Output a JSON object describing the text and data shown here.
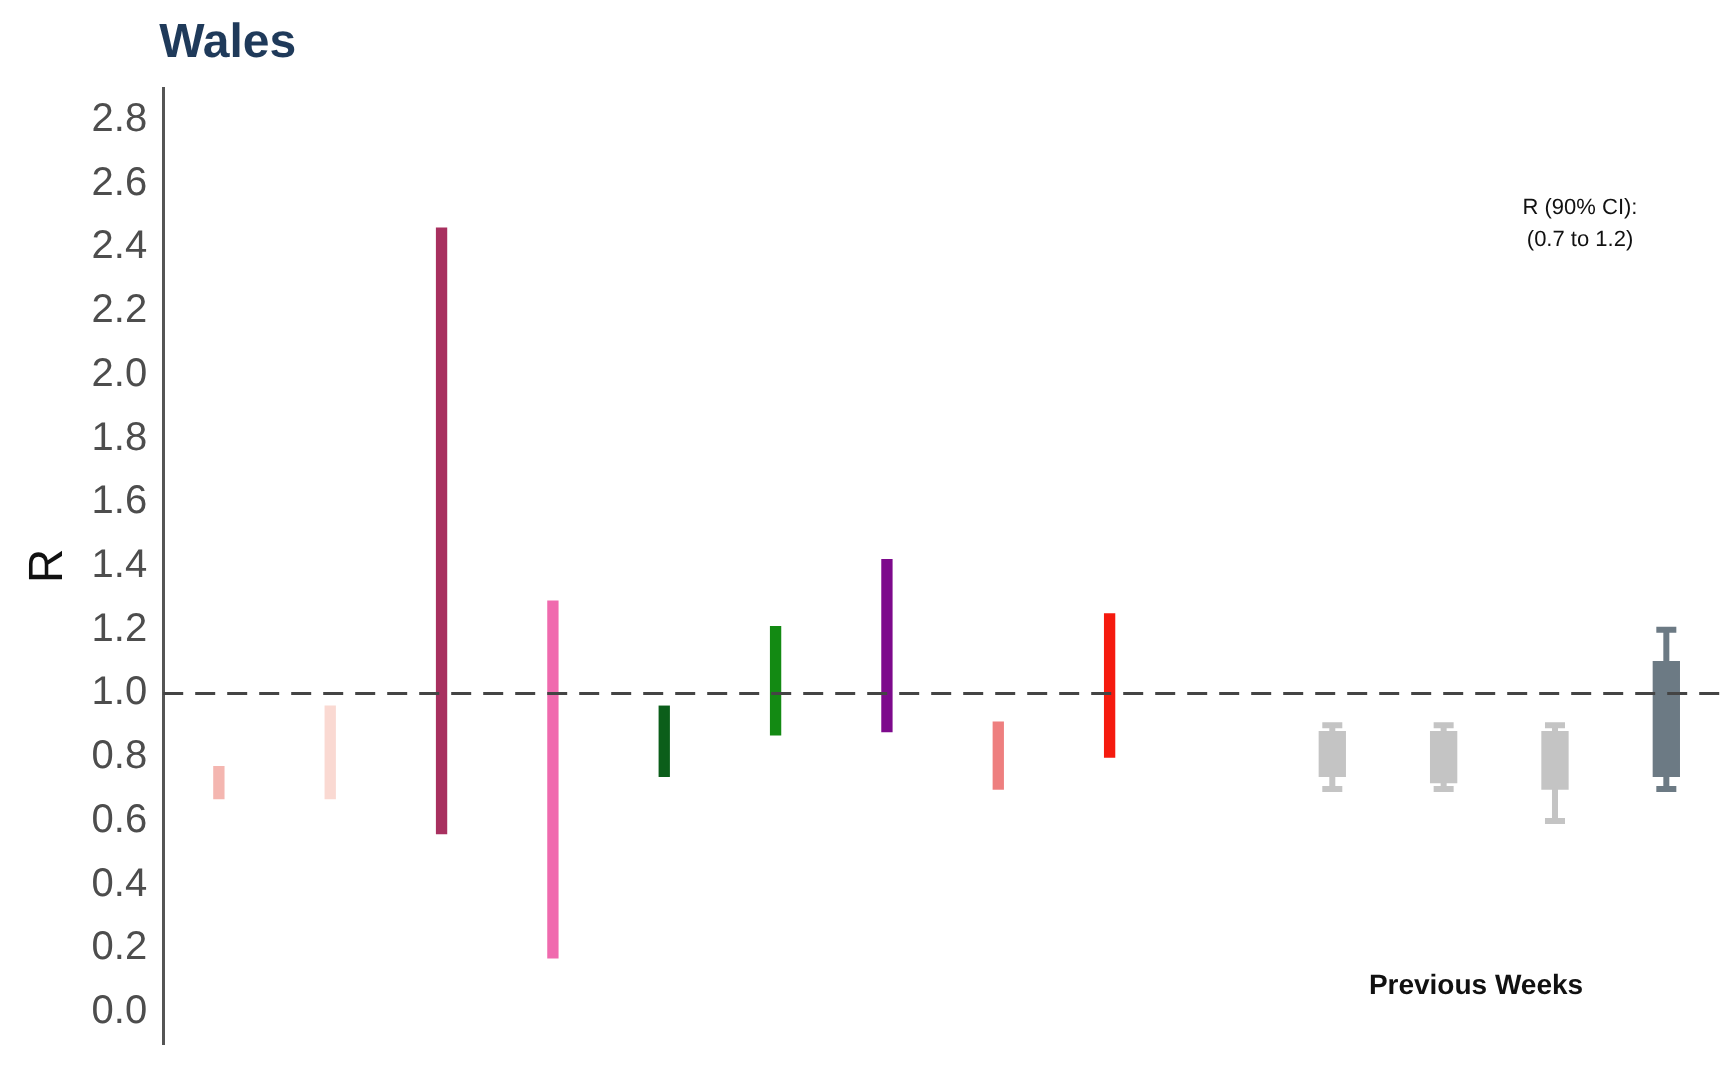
{
  "chart_data": {
    "type": "bar",
    "title": "Wales",
    "ylabel": "R",
    "tick_labels": "y",
    "categories": [
      null,
      null,
      null,
      null,
      null,
      null,
      null,
      null,
      null,
      null,
      null,
      null,
      null,
      null
    ],
    "series": [
      {
        "colors": [
          "#f4b6b0",
          "#fad9d2",
          "#a8305f",
          "#f06aae",
          "#0b5e1a",
          "#138a13",
          "#7d0a8c",
          "#ee7f7f",
          "#f51a0e",
          null,
          null,
          null,
          null,
          null
        ],
        "base": [
          0.67,
          0.67,
          0.56,
          0.17,
          0.74,
          0.87,
          0.88,
          0.7,
          0.8,
          null,
          null,
          null,
          null,
          null
        ],
        "values": [
          0.1,
          0.29,
          1.9,
          1.12,
          0.22,
          0.34,
          0.54,
          0.21,
          0.45,
          null,
          null,
          null,
          null,
          null
        ]
      },
      {
        "colors": [
          null,
          null,
          null,
          null,
          null,
          null,
          null,
          null,
          null,
          null,
          "#c4c4c4",
          "#c4c4c4",
          "#c4c4c4",
          "#6c7a84"
        ],
        "base": [
          null,
          null,
          null,
          null,
          null,
          null,
          null,
          null,
          null,
          null,
          0.74,
          0.72,
          0.7,
          0.74
        ],
        "values": [
          null,
          null,
          null,
          null,
          null,
          null,
          null,
          null,
          null,
          null,
          0.14,
          0.16,
          0.18,
          0.36
        ],
        "errors": [
          null,
          null,
          null,
          null,
          null,
          null,
          null,
          null,
          null,
          null,
          [
            0.7,
            0.9
          ],
          [
            0.7,
            0.9
          ],
          [
            0.6,
            0.9
          ],
          [
            0.7,
            1.2
          ]
        ]
      }
    ],
    "ylim": [
      -0.1,
      2.9
    ],
    "yticks": [
      {
        "value": 0,
        "label": "0.0"
      },
      {
        "value": 0.2,
        "label": "0.2"
      },
      {
        "value": 0.4,
        "label": "0.4"
      },
      {
        "value": 0.6,
        "label": "0.6"
      },
      {
        "value": 0.8,
        "label": "0.8"
      },
      {
        "value": 1,
        "label": "1.0"
      },
      {
        "value": 1.2,
        "label": "1.2"
      },
      {
        "value": 1.4,
        "label": "1.4"
      },
      {
        "value": 1.6,
        "label": "1.6"
      },
      {
        "value": 1.8,
        "label": "1.8"
      },
      {
        "value": 2,
        "label": "2.0"
      },
      {
        "value": 2.2,
        "label": "2.2"
      },
      {
        "value": 2.4,
        "label": "2.4"
      },
      {
        "value": 2.6,
        "label": "2.6"
      },
      {
        "value": 2.8,
        "label": "2.8"
      }
    ],
    "ref_lines": [
      {
        "axis": "y",
        "value": 1.0,
        "color": "#444444",
        "line_style": "dashed"
      }
    ],
    "annotations": [
      "R (90% CI):",
      "(0.7 to 1.2)",
      "Previous Weeks"
    ]
  }
}
